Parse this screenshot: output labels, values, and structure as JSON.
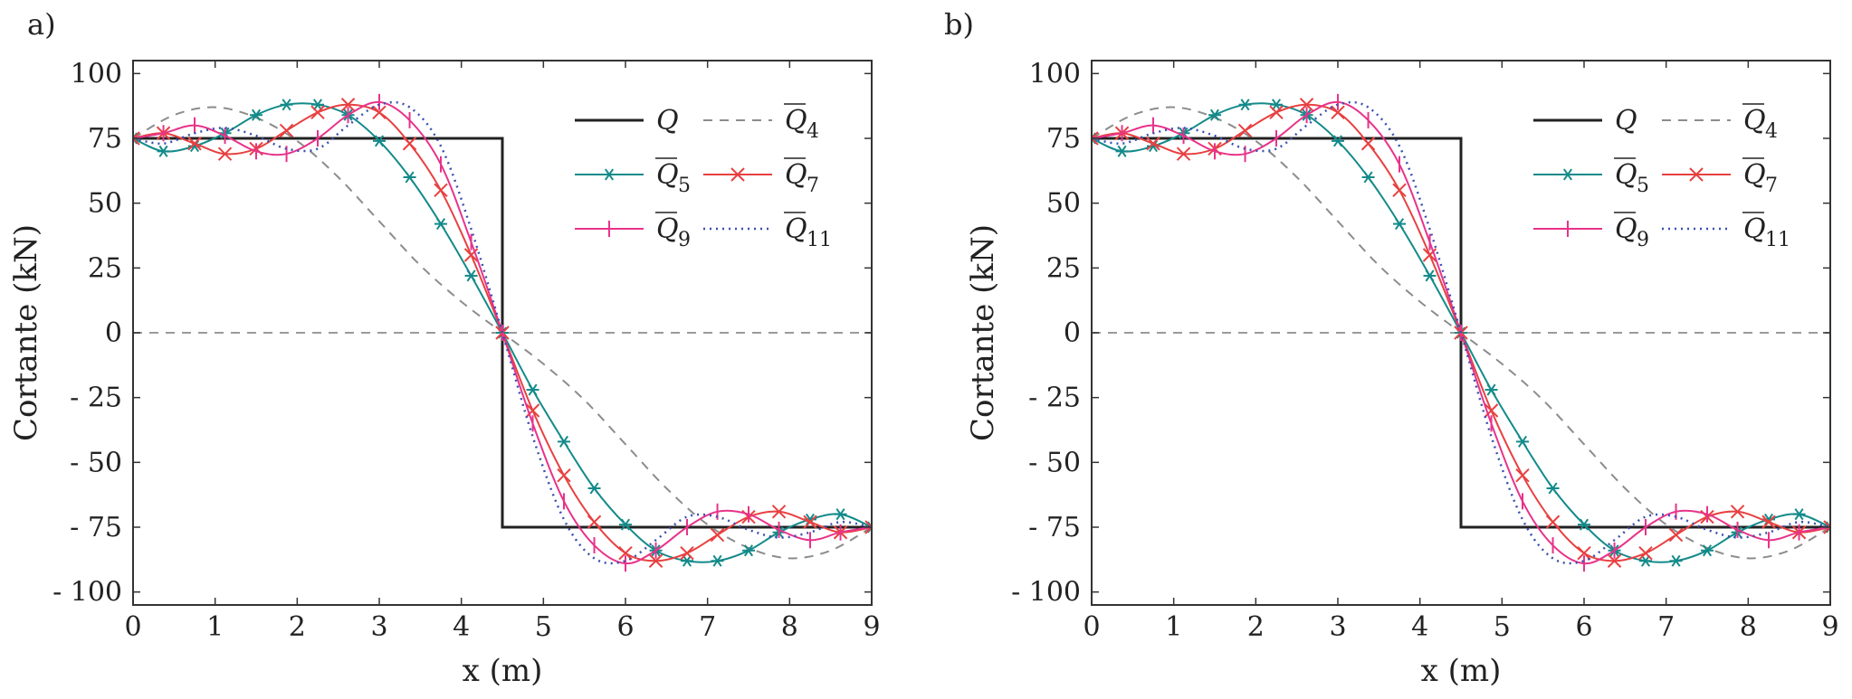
{
  "panel_labels": [
    "a)",
    "b)"
  ],
  "series_styles": {
    "Q": {
      "color": "#222222",
      "dash": "",
      "marker": "none",
      "width": 3
    },
    "Q4": {
      "color": "#8c8c8c",
      "dash": "10,8",
      "marker": "none",
      "width": 2
    },
    "Q5": {
      "color": "#138a8a",
      "dash": "",
      "marker": "star",
      "width": 2
    },
    "Q7": {
      "color": "#e84040",
      "dash": "",
      "marker": "x",
      "width": 2
    },
    "Q9": {
      "color": "#e8338a",
      "dash": "",
      "marker": "bar",
      "width": 2
    },
    "Q11": {
      "color": "#3a4fb0",
      "dash": "2,5",
      "marker": "none",
      "width": 2.5
    }
  },
  "chart_data": [
    {
      "type": "line",
      "title": "",
      "xlabel": "x (m)",
      "ylabel": "Cortante (kN)",
      "xlim": [
        0,
        9
      ],
      "ylim": [
        -105,
        105
      ],
      "xticks": [
        "0",
        "1",
        "2",
        "3",
        "4",
        "5",
        "6",
        "7",
        "8",
        "9"
      ],
      "yticks": [
        "100",
        "75",
        "50",
        "25",
        "0",
        "- 25",
        "- 50",
        "- 75",
        "- 100"
      ],
      "ytick_values": [
        100,
        75,
        50,
        25,
        0,
        -25,
        -50,
        -75,
        -100
      ],
      "grid": false,
      "legend_position": "top-right",
      "reference_line": 0,
      "legend": [
        {
          "key": "Q",
          "label": "Q",
          "sub": ""
        },
        {
          "key": "Q4",
          "label": "Q",
          "sub": "4"
        },
        {
          "key": "Q5",
          "label": "Q",
          "sub": "5"
        },
        {
          "key": "Q7",
          "label": "Q",
          "sub": "7"
        },
        {
          "key": "Q9",
          "label": "Q",
          "sub": "9"
        },
        {
          "key": "Q11",
          "label": "Q",
          "sub": "11"
        }
      ],
      "step": {
        "key": "Q",
        "left_value": 75,
        "right_value": -75,
        "jump_x": 4.5
      },
      "series": [
        {
          "key": "Q4",
          "x": [
            0,
            0.5,
            1,
            1.5,
            2,
            2.5,
            3,
            3.5,
            4,
            4.5,
            5,
            5.5,
            6,
            6.5,
            7,
            7.5,
            8,
            8.5,
            9
          ],
          "y": [
            75,
            84,
            87,
            83,
            74,
            60,
            43,
            26,
            12,
            0,
            -12,
            -26,
            -43,
            -60,
            -74,
            -83,
            -87,
            -84,
            -75
          ]
        },
        {
          "key": "Q5",
          "x": [
            0,
            0.37,
            0.75,
            1.12,
            1.5,
            1.87,
            2.25,
            2.62,
            3,
            3.37,
            3.75,
            4.12,
            4.5,
            4.87,
            5.25,
            5.62,
            6,
            6.37,
            6.75,
            7.12,
            7.5,
            7.87,
            8.25,
            8.62,
            9
          ],
          "y": [
            75,
            70,
            72,
            77,
            84,
            88,
            88,
            84,
            74,
            60,
            42,
            22,
            0,
            -22,
            -42,
            -60,
            -74,
            -84,
            -88,
            -88,
            -84,
            -77,
            -72,
            -70,
            -75
          ]
        },
        {
          "key": "Q7",
          "x": [
            0,
            0.37,
            0.75,
            1.12,
            1.5,
            1.87,
            2.25,
            2.62,
            3,
            3.37,
            3.75,
            4.12,
            4.5,
            4.87,
            5.25,
            5.62,
            6,
            6.37,
            6.75,
            7.12,
            7.5,
            7.87,
            8.25,
            8.62,
            9
          ],
          "y": [
            75,
            77,
            73,
            69,
            71,
            78,
            85,
            88,
            85,
            73,
            55,
            30,
            0,
            -30,
            -55,
            -73,
            -85,
            -88,
            -85,
            -78,
            -71,
            -69,
            -73,
            -77,
            -75
          ]
        },
        {
          "key": "Q9",
          "x": [
            0,
            0.37,
            0.75,
            1.12,
            1.5,
            1.87,
            2.25,
            2.62,
            3,
            3.37,
            3.75,
            4.12,
            4.5,
            4.87,
            5.25,
            5.62,
            6,
            6.37,
            6.75,
            7.12,
            7.5,
            7.87,
            8.25,
            8.62,
            9
          ],
          "y": [
            75,
            77,
            80,
            76,
            70,
            69,
            75,
            84,
            89,
            82,
            65,
            35,
            0,
            -35,
            -65,
            -82,
            -89,
            -84,
            -75,
            -69,
            -70,
            -76,
            -80,
            -77,
            -75
          ]
        },
        {
          "key": "Q11",
          "x": [
            0,
            0.37,
            0.75,
            1.12,
            1.5,
            1.87,
            2.25,
            2.62,
            3,
            3.37,
            3.75,
            4.12,
            4.5,
            4.87,
            5.25,
            5.62,
            6,
            6.37,
            6.75,
            7.12,
            7.5,
            7.87,
            8.25,
            8.62,
            9
          ],
          "y": [
            75,
            73,
            77,
            79,
            76,
            71,
            71,
            80,
            88,
            87,
            72,
            40,
            0,
            -40,
            -72,
            -87,
            -88,
            -80,
            -71,
            -71,
            -76,
            -79,
            -77,
            -73,
            -75
          ]
        }
      ]
    },
    {
      "type": "line",
      "title": "",
      "xlabel": "x (m)",
      "ylabel": "Cortante (kN)",
      "xlim": [
        0,
        9
      ],
      "ylim": [
        -105,
        105
      ],
      "xticks": [
        "0",
        "1",
        "2",
        "3",
        "4",
        "5",
        "6",
        "7",
        "8",
        "9"
      ],
      "yticks": [
        "100",
        "75",
        "50",
        "25",
        "0",
        "- 25",
        "- 50",
        "- 75",
        "- 100"
      ],
      "ytick_values": [
        100,
        75,
        50,
        25,
        0,
        -25,
        -50,
        -75,
        -100
      ],
      "grid": false,
      "legend_position": "top-right",
      "reference_line": 0,
      "legend": [
        {
          "key": "Q",
          "label": "Q",
          "sub": ""
        },
        {
          "key": "Q4",
          "label": "Q",
          "sub": "4"
        },
        {
          "key": "Q5",
          "label": "Q",
          "sub": "5"
        },
        {
          "key": "Q7",
          "label": "Q",
          "sub": "7"
        },
        {
          "key": "Q9",
          "label": "Q",
          "sub": "9"
        },
        {
          "key": "Q11",
          "label": "Q",
          "sub": "11"
        }
      ],
      "step": {
        "key": "Q",
        "left_value": 75,
        "right_value": -75,
        "jump_x": 4.5
      },
      "series": [
        {
          "key": "Q4",
          "x": [
            0,
            0.5,
            1,
            1.5,
            2,
            2.5,
            3,
            3.5,
            4,
            4.5,
            5,
            5.5,
            6,
            6.5,
            7,
            7.5,
            8,
            8.5,
            9
          ],
          "y": [
            75,
            84,
            87,
            83,
            74,
            60,
            43,
            26,
            12,
            0,
            -12,
            -26,
            -43,
            -60,
            -74,
            -83,
            -87,
            -84,
            -75
          ]
        },
        {
          "key": "Q5",
          "x": [
            0,
            0.37,
            0.75,
            1.12,
            1.5,
            1.87,
            2.25,
            2.62,
            3,
            3.37,
            3.75,
            4.12,
            4.5,
            4.87,
            5.25,
            5.62,
            6,
            6.37,
            6.75,
            7.12,
            7.5,
            7.87,
            8.25,
            8.62,
            9
          ],
          "y": [
            75,
            70,
            72,
            77,
            84,
            88,
            88,
            84,
            74,
            60,
            42,
            22,
            0,
            -22,
            -42,
            -60,
            -74,
            -84,
            -88,
            -88,
            -84,
            -77,
            -72,
            -70,
            -75
          ]
        },
        {
          "key": "Q7",
          "x": [
            0,
            0.37,
            0.75,
            1.12,
            1.5,
            1.87,
            2.25,
            2.62,
            3,
            3.37,
            3.75,
            4.12,
            4.5,
            4.87,
            5.25,
            5.62,
            6,
            6.37,
            6.75,
            7.12,
            7.5,
            7.87,
            8.25,
            8.62,
            9
          ],
          "y": [
            75,
            77,
            73,
            69,
            71,
            78,
            85,
            88,
            85,
            73,
            55,
            30,
            0,
            -30,
            -55,
            -73,
            -85,
            -88,
            -85,
            -78,
            -71,
            -69,
            -73,
            -77,
            -75
          ]
        },
        {
          "key": "Q9",
          "x": [
            0,
            0.37,
            0.75,
            1.12,
            1.5,
            1.87,
            2.25,
            2.62,
            3,
            3.37,
            3.75,
            4.12,
            4.5,
            4.87,
            5.25,
            5.62,
            6,
            6.37,
            6.75,
            7.12,
            7.5,
            7.87,
            8.25,
            8.62,
            9
          ],
          "y": [
            75,
            77,
            80,
            76,
            70,
            69,
            75,
            84,
            89,
            82,
            65,
            35,
            0,
            -35,
            -65,
            -82,
            -89,
            -84,
            -75,
            -69,
            -70,
            -76,
            -80,
            -77,
            -75
          ]
        },
        {
          "key": "Q11",
          "x": [
            0,
            0.37,
            0.75,
            1.12,
            1.5,
            1.87,
            2.25,
            2.62,
            3,
            3.37,
            3.75,
            4.12,
            4.5,
            4.87,
            5.25,
            5.62,
            6,
            6.37,
            6.75,
            7.12,
            7.5,
            7.87,
            8.25,
            8.62,
            9
          ],
          "y": [
            75,
            73,
            77,
            79,
            76,
            71,
            71,
            80,
            88,
            87,
            72,
            40,
            0,
            -40,
            -72,
            -87,
            -88,
            -80,
            -71,
            -71,
            -76,
            -79,
            -77,
            -73,
            -75
          ]
        }
      ]
    }
  ]
}
